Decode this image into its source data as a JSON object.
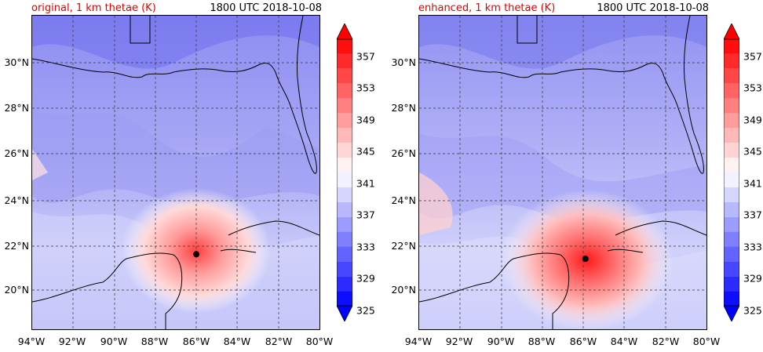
{
  "panels": [
    {
      "title_left": "original, 1 km thetae (K)",
      "title_right": "1800 UTC 2018-10-08",
      "storm_center": {
        "lon": -86.0,
        "lat": 21.5
      }
    },
    {
      "title_left": "enhanced, 1 km thetae (K)",
      "title_right": "1800 UTC 2018-10-08",
      "storm_center": {
        "lon": -85.9,
        "lat": 21.3
      }
    }
  ],
  "lat_labels": [
    "30°N",
    "28°N",
    "26°N",
    "24°N",
    "22°N",
    "20°N"
  ],
  "lon_labels": [
    "94°W",
    "92°W",
    "90°W",
    "88°W",
    "86°W",
    "84°W",
    "82°W",
    "80°W"
  ],
  "map_extent": {
    "lon_min": -94,
    "lon_max": -80,
    "lat_min": 18.2,
    "lat_max": 32.0
  },
  "colorbar": {
    "ticks": [
      "325",
      "329",
      "333",
      "337",
      "341",
      "345",
      "349",
      "353",
      "357"
    ],
    "min": 323,
    "max": 359,
    "colors": {
      "low": "#0000ff",
      "mid": "#ffffff",
      "high": "#ff0000"
    }
  }
}
